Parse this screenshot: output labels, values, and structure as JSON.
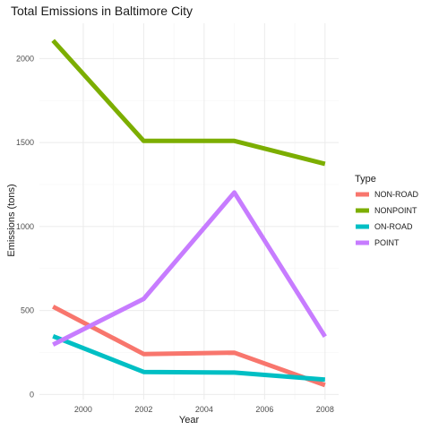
{
  "chart_data": {
    "type": "line",
    "title": "Total Emissions in Baltimore City",
    "xlabel": "Year",
    "ylabel": "Emissions (tons)",
    "x": [
      1999,
      2002,
      2005,
      2008
    ],
    "xlim": [
      1998.55,
      2008.45
    ],
    "ylim": [
      -30,
      2210
    ],
    "xticks": [
      2000,
      2002,
      2004,
      2006,
      2008
    ],
    "yticks": [
      0,
      500,
      1000,
      1500,
      2000
    ],
    "grid": true,
    "legend": {
      "title": "Type",
      "position": "right"
    },
    "series": [
      {
        "name": "NON-ROAD",
        "color": "#F8766D",
        "values": [
          522.94,
          240.85,
          248.93,
          55.82
        ]
      },
      {
        "name": "NONPOINT",
        "color": "#7CAE00",
        "values": [
          2107.63,
          1509.5,
          1509.5,
          1373.21
        ]
      },
      {
        "name": "ON-ROAD",
        "color": "#00BFC4",
        "values": [
          346.82,
          134.31,
          130.43,
          88.28
        ]
      },
      {
        "name": "POINT",
        "color": "#C77CFF",
        "values": [
          296.8,
          569.26,
          1202.49,
          344.98
        ]
      }
    ]
  }
}
